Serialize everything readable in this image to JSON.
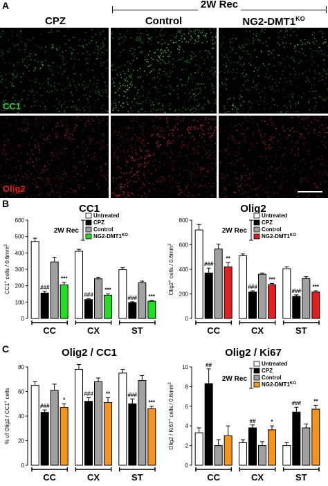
{
  "panel_a": {
    "letter": "A",
    "group_header": "2W Rec",
    "columns": [
      "CPZ",
      "Control",
      "NG2-DMT1"
    ],
    "ko_sup": "KO",
    "row_labels": [
      "CC1",
      "Olig2"
    ],
    "colors": {
      "cc1": "#2fd02f",
      "olig2": "#e02020"
    }
  },
  "panel_b": {
    "letter": "B"
  },
  "panel_c": {
    "letter": "C"
  },
  "chart_data": [
    {
      "type": "bar",
      "title": "CC1",
      "ylabel": "CC1+ cells / 0.6mm2",
      "ylabel_main": "CC1",
      "ylabel_sup": "+",
      "ylabel_rest": " cells / 0.6mm",
      "ylabel_sup2": "2",
      "ylim": [
        0,
        600
      ],
      "yticks": [
        "0",
        "100",
        "200",
        "300",
        "400",
        "500",
        "600"
      ],
      "categories": [
        "CC",
        "CX",
        "ST"
      ],
      "legend_labels": [
        "Untreated",
        "CPZ",
        "Control",
        "NG2-DMT1"
      ],
      "legend_sup": "KO",
      "legend_group": "2W Rec",
      "series": [
        {
          "name": "Untreated",
          "color": "#ffffff",
          "values": [
            470,
            410,
            298
          ],
          "err": [
            20,
            12,
            12
          ]
        },
        {
          "name": "CPZ",
          "color": "#000000",
          "values": [
            155,
            115,
            97
          ],
          "err": [
            10,
            6,
            5
          ]
        },
        {
          "name": "Control",
          "color": "#a0a0a0",
          "values": [
            345,
            242,
            218
          ],
          "err": [
            28,
            10,
            10
          ]
        },
        {
          "name": "NG2-DMT1KO",
          "color": "#22dd22",
          "values": [
            205,
            142,
            105
          ],
          "err": [
            15,
            8,
            5
          ]
        }
      ],
      "annotations": [
        {
          "cat": 0,
          "series": 1,
          "text": "###"
        },
        {
          "cat": 0,
          "series": 3,
          "text": "***"
        },
        {
          "cat": 1,
          "series": 1,
          "text": "###"
        },
        {
          "cat": 1,
          "series": 3,
          "text": "***"
        },
        {
          "cat": 2,
          "series": 1,
          "text": "###"
        },
        {
          "cat": 2,
          "series": 3,
          "text": "***"
        }
      ]
    },
    {
      "type": "bar",
      "title": "Olig2",
      "ylabel": "Olig2+ cells / 0.6mm2",
      "ylabel_main": "Olig2",
      "ylabel_sup": "+",
      "ylabel_rest": " cells / 0.6mm",
      "ylabel_sup2": "2",
      "ylim": [
        0,
        800
      ],
      "yticks": [
        "0",
        "200",
        "400",
        "600",
        "800"
      ],
      "categories": [
        "CC",
        "CX",
        "ST"
      ],
      "legend_labels": [
        "Untreated",
        "CPZ",
        "Control",
        "NG2-DMT1"
      ],
      "legend_sup": "KO",
      "legend_group": "2W Rec",
      "series": [
        {
          "name": "Untreated",
          "color": "#ffffff",
          "values": [
            720,
            510,
            405
          ],
          "err": [
            45,
            15,
            15
          ]
        },
        {
          "name": "CPZ",
          "color": "#000000",
          "values": [
            370,
            215,
            180
          ],
          "err": [
            40,
            10,
            12
          ]
        },
        {
          "name": "Control",
          "color": "#a0a0a0",
          "values": [
            565,
            360,
            325
          ],
          "err": [
            40,
            10,
            15
          ]
        },
        {
          "name": "NG2-DMT1KO",
          "color": "#e02020",
          "values": [
            420,
            275,
            215
          ],
          "err": [
            35,
            10,
            10
          ]
        }
      ],
      "annotations": [
        {
          "cat": 0,
          "series": 1,
          "text": "###"
        },
        {
          "cat": 0,
          "series": 3,
          "text": "**"
        },
        {
          "cat": 1,
          "series": 1,
          "text": "###"
        },
        {
          "cat": 1,
          "series": 3,
          "text": "***"
        },
        {
          "cat": 2,
          "series": 1,
          "text": "###"
        },
        {
          "cat": 2,
          "series": 3,
          "text": "***"
        }
      ]
    },
    {
      "type": "bar",
      "title": "Olig2 / CC1",
      "ylabel": "% of Olig2 / CC1+ cells",
      "ylabel_main": "% of Olig2 / CC1",
      "ylabel_sup": "+",
      "ylabel_rest": " cells",
      "ylabel_sup2": "",
      "ylim": [
        0,
        80
      ],
      "yticks": [
        "0",
        "20",
        "40",
        "60",
        "80"
      ],
      "categories": [
        "CC",
        "CX",
        "ST"
      ],
      "series": [
        {
          "name": "Untreated",
          "color": "#ffffff",
          "values": [
            65,
            78,
            75
          ],
          "err": [
            3,
            4,
            3
          ]
        },
        {
          "name": "CPZ",
          "color": "#000000",
          "values": [
            43,
            52,
            50
          ],
          "err": [
            2,
            3,
            4
          ]
        },
        {
          "name": "Control",
          "color": "#a0a0a0",
          "values": [
            61,
            68,
            69
          ],
          "err": [
            5,
            3,
            4
          ]
        },
        {
          "name": "NG2-DMT1KO",
          "color": "#f7941d",
          "values": [
            47,
            51,
            46
          ],
          "err": [
            3,
            4,
            2
          ]
        }
      ],
      "annotations": [
        {
          "cat": 0,
          "series": 1,
          "text": "###"
        },
        {
          "cat": 0,
          "series": 3,
          "text": "*"
        },
        {
          "cat": 1,
          "series": 1,
          "text": "###"
        },
        {
          "cat": 1,
          "series": 3,
          "text": "**"
        },
        {
          "cat": 2,
          "series": 1,
          "text": "###"
        },
        {
          "cat": 2,
          "series": 3,
          "text": "***"
        }
      ]
    },
    {
      "type": "bar",
      "title": "Olig2 / Ki67",
      "ylabel": "Olig2 / Ki67+ cells / 0.6mm2",
      "ylabel_main": "Olig2 / Ki67",
      "ylabel_sup": "+",
      "ylabel_rest": " cells / 0.6mm",
      "ylabel_sup2": "2",
      "ylim": [
        0,
        10
      ],
      "yticks": [
        "0",
        "2",
        "4",
        "6",
        "8",
        "10"
      ],
      "categories": [
        "CC",
        "CX",
        "ST"
      ],
      "legend_labels": [
        "Untreated",
        "CPZ",
        "Control",
        "NG2-DMT1"
      ],
      "legend_sup": "KO",
      "legend_group": "2W Rec",
      "series": [
        {
          "name": "Untreated",
          "color": "#ffffff",
          "values": [
            3.3,
            2.3,
            2.0
          ],
          "err": [
            0.5,
            0.3,
            0.3
          ]
        },
        {
          "name": "CPZ",
          "color": "#000000",
          "values": [
            8.3,
            3.8,
            5.4
          ],
          "err": [
            1.5,
            0.3,
            0.5
          ]
        },
        {
          "name": "Control",
          "color": "#a0a0a0",
          "values": [
            2.0,
            2.0,
            3.8
          ],
          "err": [
            0.6,
            0.4,
            0.4
          ]
        },
        {
          "name": "NG2-DMT1KO",
          "color": "#f7941d",
          "values": [
            3.0,
            3.6,
            5.7
          ],
          "err": [
            1.0,
            0.4,
            0.4
          ]
        }
      ],
      "annotations": [
        {
          "cat": 0,
          "series": 1,
          "text": "##"
        },
        {
          "cat": 1,
          "series": 1,
          "text": "##"
        },
        {
          "cat": 1,
          "series": 3,
          "text": "*"
        },
        {
          "cat": 2,
          "series": 1,
          "text": "###"
        },
        {
          "cat": 2,
          "series": 3,
          "text": "**"
        }
      ]
    }
  ]
}
